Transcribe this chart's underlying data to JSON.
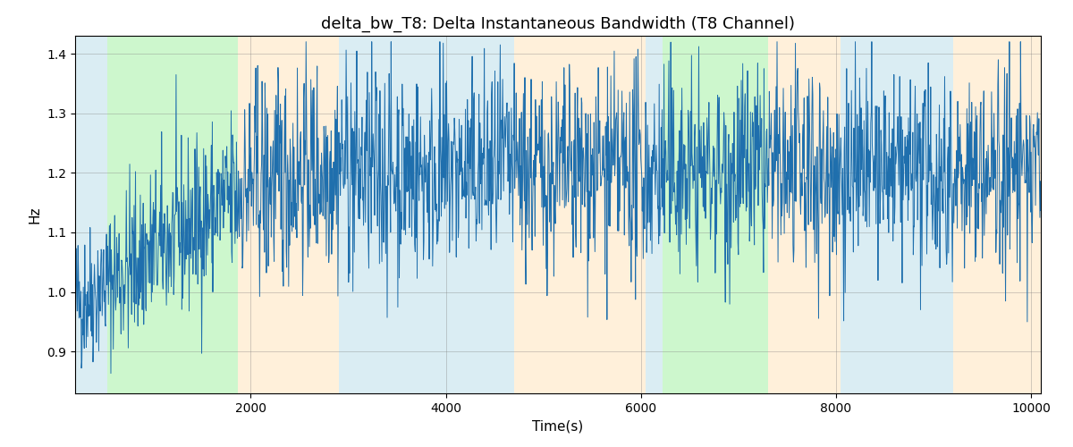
{
  "title": "delta_bw_T8: Delta Instantaneous Bandwidth (T8 Channel)",
  "xlabel": "Time(s)",
  "ylabel": "Hz",
  "xlim": [
    200,
    10100
  ],
  "ylim": [
    0.83,
    1.43
  ],
  "yticks": [
    0.9,
    1.0,
    1.1,
    1.2,
    1.3,
    1.4
  ],
  "xticks": [
    2000,
    4000,
    6000,
    8000,
    10000
  ],
  "line_color": "#1f6fad",
  "line_width": 0.7,
  "background_color": "#ffffff",
  "bg_bands": [
    {
      "xmin": 200,
      "xmax": 530,
      "color": "#add8e6",
      "alpha": 0.45
    },
    {
      "xmin": 530,
      "xmax": 1870,
      "color": "#90ee90",
      "alpha": 0.45
    },
    {
      "xmin": 1870,
      "xmax": 2900,
      "color": "#ffdead",
      "alpha": 0.45
    },
    {
      "xmin": 2900,
      "xmax": 4700,
      "color": "#add8e6",
      "alpha": 0.45
    },
    {
      "xmin": 4700,
      "xmax": 6050,
      "color": "#ffdead",
      "alpha": 0.45
    },
    {
      "xmin": 6050,
      "xmax": 6220,
      "color": "#add8e6",
      "alpha": 0.45
    },
    {
      "xmin": 6220,
      "xmax": 7300,
      "color": "#90ee90",
      "alpha": 0.45
    },
    {
      "xmin": 7300,
      "xmax": 8050,
      "color": "#ffdead",
      "alpha": 0.45
    },
    {
      "xmin": 8050,
      "xmax": 9200,
      "color": "#add8e6",
      "alpha": 0.45
    },
    {
      "xmin": 9200,
      "xmax": 10100,
      "color": "#ffdead",
      "alpha": 0.45
    }
  ],
  "seed": 42,
  "n_points": 2000,
  "title_fontsize": 13,
  "label_fontsize": 11,
  "tick_fontsize": 10,
  "figsize": [
    12.0,
    5.0
  ],
  "dpi": 100
}
